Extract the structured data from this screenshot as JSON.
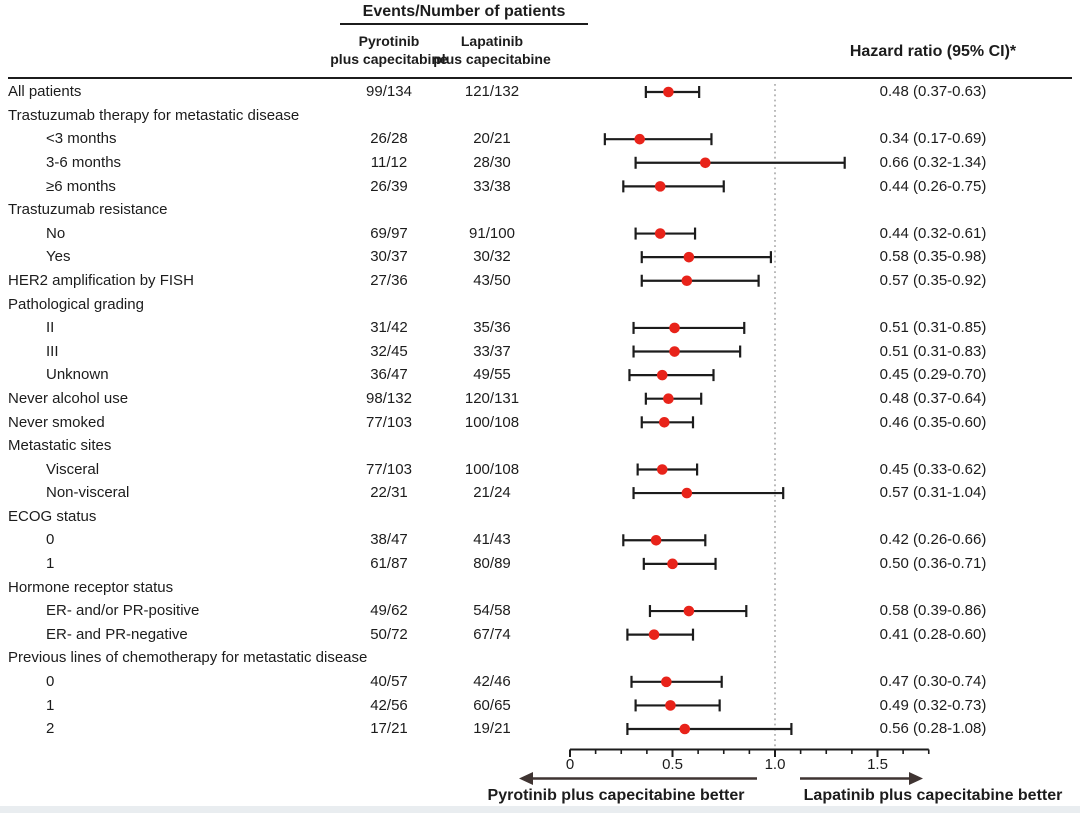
{
  "header": {
    "events_title": "Events/Number of patients",
    "arm1": {
      "line1": "Pyrotinib",
      "line2": "plus capecitabine"
    },
    "arm2": {
      "line1": "Lapatinib",
      "line2": "plus capecitabine"
    },
    "hazard_title": "Hazard ratio (95% CI)*"
  },
  "footer": {
    "left_better": "Pyrotinib plus capecitabine better",
    "right_better": "Lapatinib plus capecitabine better"
  },
  "colors": {
    "point": "#e8231a",
    "ci_line": "#1c1c1c",
    "reference_line": "#a8a8a8",
    "arrow": "#3f3432",
    "text": "#1c1c1c"
  },
  "chart_data": {
    "type": "forest",
    "title": "Subgroup analysis of progression-free survival",
    "x_axis": {
      "tick_labels": [
        "0",
        "0.5",
        "1.0",
        "1.5"
      ],
      "tick_values": [
        0,
        0.5,
        1.0,
        1.5
      ],
      "minor_tick_step": 0.125,
      "min": 0,
      "max": 1.75,
      "reference_line": 1.0
    },
    "rows": [
      {
        "label": "All patients",
        "indent": 0,
        "pyrotinib": "99/134",
        "lapatinib": "121/132",
        "hr_text": "0.48 (0.37-0.63)",
        "hr": 0.48,
        "lo": 0.37,
        "hi": 0.63
      },
      {
        "label": "Trastuzumab therapy for metastatic disease",
        "indent": 0,
        "group": true
      },
      {
        "label": "<3 months",
        "indent": 1,
        "pyrotinib": "26/28",
        "lapatinib": "20/21",
        "hr_text": "0.34 (0.17-0.69)",
        "hr": 0.34,
        "lo": 0.17,
        "hi": 0.69
      },
      {
        "label": "3-6 months",
        "indent": 1,
        "pyrotinib": "11/12",
        "lapatinib": "28/30",
        "hr_text": "0.66 (0.32-1.34)",
        "hr": 0.66,
        "lo": 0.32,
        "hi": 1.34
      },
      {
        "label": "≥6 months",
        "indent": 1,
        "pyrotinib": "26/39",
        "lapatinib": "33/38",
        "hr_text": "0.44 (0.26-0.75)",
        "hr": 0.44,
        "lo": 0.26,
        "hi": 0.75
      },
      {
        "label": "Trastuzumab resistance",
        "indent": 0,
        "group": true
      },
      {
        "label": "No",
        "indent": 1,
        "pyrotinib": "69/97",
        "lapatinib": "91/100",
        "hr_text": "0.44 (0.32-0.61)",
        "hr": 0.44,
        "lo": 0.32,
        "hi": 0.61
      },
      {
        "label": "Yes",
        "indent": 1,
        "pyrotinib": "30/37",
        "lapatinib": "30/32",
        "hr_text": "0.58 (0.35-0.98)",
        "hr": 0.58,
        "lo": 0.35,
        "hi": 0.98
      },
      {
        "label": "HER2 amplification by FISH",
        "indent": 0,
        "pyrotinib": "27/36",
        "lapatinib": "43/50",
        "hr_text": "0.57 (0.35-0.92)",
        "hr": 0.57,
        "lo": 0.35,
        "hi": 0.92
      },
      {
        "label": "Pathological grading",
        "indent": 0,
        "group": true
      },
      {
        "label": "II",
        "indent": 1,
        "pyrotinib": "31/42",
        "lapatinib": "35/36",
        "hr_text": "0.51 (0.31-0.85)",
        "hr": 0.51,
        "lo": 0.31,
        "hi": 0.85
      },
      {
        "label": "III",
        "indent": 1,
        "pyrotinib": "32/45",
        "lapatinib": "33/37",
        "hr_text": "0.51 (0.31-0.83)",
        "hr": 0.51,
        "lo": 0.31,
        "hi": 0.83
      },
      {
        "label": "Unknown",
        "indent": 1,
        "pyrotinib": "36/47",
        "lapatinib": "49/55",
        "hr_text": "0.45 (0.29-0.70)",
        "hr": 0.45,
        "lo": 0.29,
        "hi": 0.7
      },
      {
        "label": "Never alcohol use",
        "indent": 0,
        "pyrotinib": "98/132",
        "lapatinib": "120/131",
        "hr_text": "0.48 (0.37-0.64)",
        "hr": 0.48,
        "lo": 0.37,
        "hi": 0.64
      },
      {
        "label": "Never smoked",
        "indent": 0,
        "pyrotinib": "77/103",
        "lapatinib": "100/108",
        "hr_text": "0.46 (0.35-0.60)",
        "hr": 0.46,
        "lo": 0.35,
        "hi": 0.6
      },
      {
        "label": "Metastatic sites",
        "indent": 0,
        "group": true
      },
      {
        "label": "Visceral",
        "indent": 1,
        "pyrotinib": "77/103",
        "lapatinib": "100/108",
        "hr_text": "0.45 (0.33-0.62)",
        "hr": 0.45,
        "lo": 0.33,
        "hi": 0.62
      },
      {
        "label": "Non-visceral",
        "indent": 1,
        "pyrotinib": "22/31",
        "lapatinib": "21/24",
        "hr_text": "0.57 (0.31-1.04)",
        "hr": 0.57,
        "lo": 0.31,
        "hi": 1.04
      },
      {
        "label": "ECOG status",
        "indent": 0,
        "group": true
      },
      {
        "label": "0",
        "indent": 1,
        "pyrotinib": "38/47",
        "lapatinib": "41/43",
        "hr_text": "0.42 (0.26-0.66)",
        "hr": 0.42,
        "lo": 0.26,
        "hi": 0.66
      },
      {
        "label": "1",
        "indent": 1,
        "pyrotinib": "61/87",
        "lapatinib": "80/89",
        "hr_text": "0.50 (0.36-0.71)",
        "hr": 0.5,
        "lo": 0.36,
        "hi": 0.71
      },
      {
        "label": "Hormone receptor status",
        "indent": 0,
        "group": true
      },
      {
        "label": "ER- and/or PR-positive",
        "indent": 1,
        "pyrotinib": "49/62",
        "lapatinib": "54/58",
        "hr_text": "0.58 (0.39-0.86)",
        "hr": 0.58,
        "lo": 0.39,
        "hi": 0.86
      },
      {
        "label": "ER- and PR-negative",
        "indent": 1,
        "pyrotinib": "50/72",
        "lapatinib": "67/74",
        "hr_text": "0.41 (0.28-0.60)",
        "hr": 0.41,
        "lo": 0.28,
        "hi": 0.6
      },
      {
        "label": "Previous lines of chemotherapy for metastatic disease",
        "indent": 0,
        "group": true
      },
      {
        "label": "0",
        "indent": 1,
        "pyrotinib": "40/57",
        "lapatinib": "42/46",
        "hr_text": "0.47 (0.30-0.74)",
        "hr": 0.47,
        "lo": 0.3,
        "hi": 0.74
      },
      {
        "label": "1",
        "indent": 1,
        "pyrotinib": "42/56",
        "lapatinib": "60/65",
        "hr_text": "0.49 (0.32-0.73)",
        "hr": 0.49,
        "lo": 0.32,
        "hi": 0.73
      },
      {
        "label": "2",
        "indent": 1,
        "pyrotinib": "17/21",
        "lapatinib": "19/21",
        "hr_text": "0.56 (0.28-1.08)",
        "hr": 0.56,
        "lo": 0.28,
        "hi": 1.08
      }
    ]
  }
}
